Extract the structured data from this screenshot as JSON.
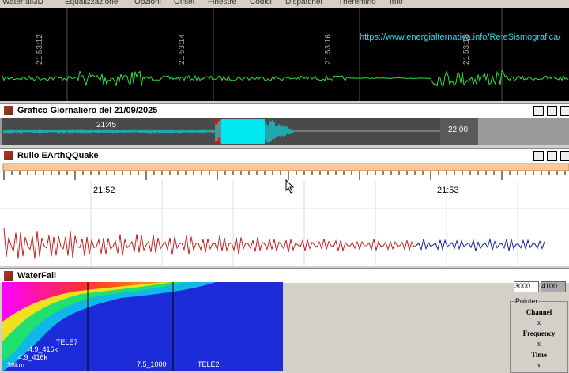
{
  "menu": [
    "Waterfall3D",
    "Equalizzazione",
    "Opzioni",
    "Offset",
    "Finestre",
    "Codici",
    "Dispatcher",
    "Theremino",
    "Info"
  ],
  "scope": {
    "times": [
      "21:53:12",
      "21:53:14",
      "21:53:16",
      "21:53:18"
    ],
    "url": "https://www.energialternativa.info/ReteSismografica/"
  },
  "daily": {
    "title": "Grafico Giornaliero del 21/09/2025",
    "start": "21:45",
    "end": "22:00"
  },
  "roll": {
    "title": "Rullo EArthQQuake",
    "times": [
      "21:52",
      "21:53"
    ]
  },
  "waterfall": {
    "title": "WaterFall",
    "labels": [
      "TELE7",
      "4.9_416k",
      "4.9_416k",
      "36km",
      "7.5_1000",
      "TELE2"
    ]
  },
  "side": {
    "fields": [
      "3000",
      "4100"
    ],
    "group": "Pointer",
    "items": [
      {
        "label": "Channel",
        "value": "x"
      },
      {
        "label": "Frequency",
        "value": "x"
      },
      {
        "label": "Time",
        "value": "x"
      }
    ]
  }
}
